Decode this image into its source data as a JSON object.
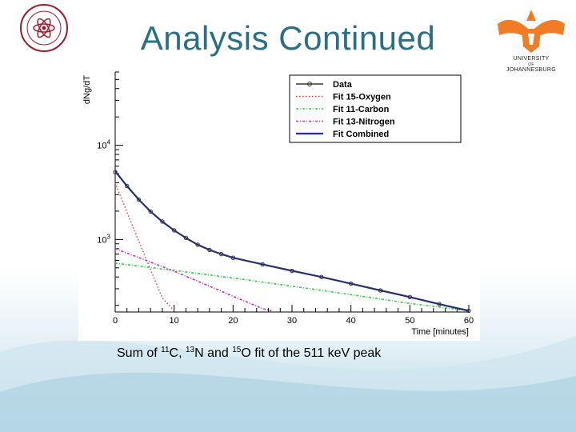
{
  "slide": {
    "title": "Analysis Continued",
    "logo_right_text_1": "UNIVERSITY",
    "logo_right_text_2": "OF",
    "logo_right_text_3": "JOHANNESBURG",
    "caption": {
      "part1": "Sum of ",
      "iso_c": "11",
      "el_c": "C, ",
      "iso_n": "13",
      "el_n": "N and ",
      "iso_o": "15",
      "el_o": "O fit of the 511 keV peak"
    }
  },
  "chart_data": {
    "type": "line",
    "ylabel": "dNg/dT",
    "xlabel": "Time [minutes]",
    "xlim": [
      0,
      60
    ],
    "ylim": [
      170,
      60000
    ],
    "yscale": "log",
    "xticks": [
      0,
      10,
      20,
      30,
      40,
      50,
      60
    ],
    "yticks": [
      {
        "value": 1000,
        "base": "10",
        "exp": "3"
      },
      {
        "value": 10000,
        "base": "10",
        "exp": "4"
      }
    ],
    "legend_position": "top-right",
    "legend": [
      "Data",
      "Fit 15-Oxygen",
      "Fit 11-Carbon",
      "Fit 13-Nitrogen",
      "Fit Combined"
    ],
    "colors": {
      "data": "#333333",
      "oxygen": "#e0382c",
      "carbon": "#2ecc40",
      "nitrogen": "#cc22cc",
      "combined": "#1a2fb0"
    },
    "series": [
      {
        "name": "Data",
        "x": [
          0,
          2,
          4,
          6,
          8,
          10,
          12,
          14,
          16,
          18,
          20,
          25,
          30,
          35,
          40,
          45,
          50,
          55,
          60
        ],
        "y": [
          5200,
          3700,
          2650,
          1980,
          1550,
          1250,
          1040,
          880,
          775,
          700,
          640,
          545,
          465,
          400,
          340,
          288,
          245,
          206,
          175
        ]
      },
      {
        "name": "Fit 15-Oxygen",
        "x": [
          0,
          2,
          4,
          6,
          8,
          10
        ],
        "y": [
          4000,
          1950,
          960,
          480,
          240,
          175
        ]
      },
      {
        "name": "Fit 11-Carbon",
        "x": [
          0,
          10,
          20,
          30,
          40,
          50,
          60
        ],
        "y": [
          560,
          470,
          390,
          320,
          260,
          210,
          175
        ]
      },
      {
        "name": "Fit 13-Nitrogen",
        "x": [
          0,
          5,
          10,
          15,
          20,
          25,
          26.5
        ],
        "y": [
          800,
          610,
          460,
          340,
          250,
          185,
          175
        ]
      },
      {
        "name": "Fit Combined",
        "x": [
          0,
          2,
          4,
          6,
          8,
          10,
          12,
          14,
          16,
          18,
          20,
          25,
          30,
          35,
          40,
          45,
          50,
          55,
          60
        ],
        "y": [
          5300,
          3700,
          2650,
          1980,
          1550,
          1250,
          1040,
          880,
          775,
          700,
          640,
          545,
          465,
          400,
          340,
          288,
          245,
          206,
          175
        ]
      }
    ]
  }
}
